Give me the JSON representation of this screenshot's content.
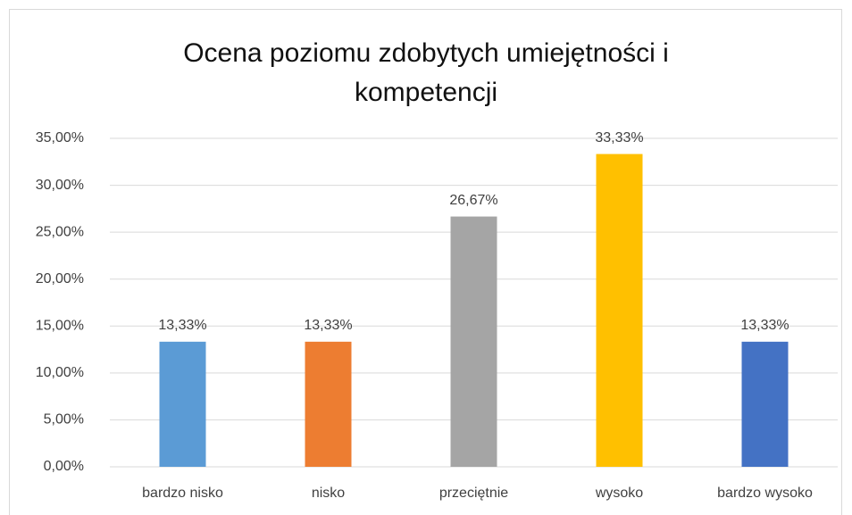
{
  "chart_data": {
    "type": "bar",
    "title": "Ocena poziomu zdobytych umiejętności i kompetencji",
    "categories": [
      "bardzo nisko",
      "nisko",
      "przeciętnie",
      "wysoko",
      "bardzo wysoko"
    ],
    "values": [
      13.33,
      13.33,
      26.67,
      33.33,
      13.33
    ],
    "value_labels": [
      "13,33%",
      "13,33%",
      "26,67%",
      "33,33%",
      "13,33%"
    ],
    "colors": [
      "#5b9bd5",
      "#ed7d31",
      "#a5a5a5",
      "#ffc000",
      "#4472c4"
    ],
    "ylim": [
      0,
      35
    ],
    "yticks": [
      {
        "value": 0,
        "label": "0,00%"
      },
      {
        "value": 5,
        "label": "5,00%"
      },
      {
        "value": 10,
        "label": "10,00%"
      },
      {
        "value": 15,
        "label": "15,00%"
      },
      {
        "value": 20,
        "label": "20,00%"
      },
      {
        "value": 25,
        "label": "25,00%"
      },
      {
        "value": 30,
        "label": "30,00%"
      },
      {
        "value": 35,
        "label": "35,00%"
      }
    ],
    "grid": true
  }
}
